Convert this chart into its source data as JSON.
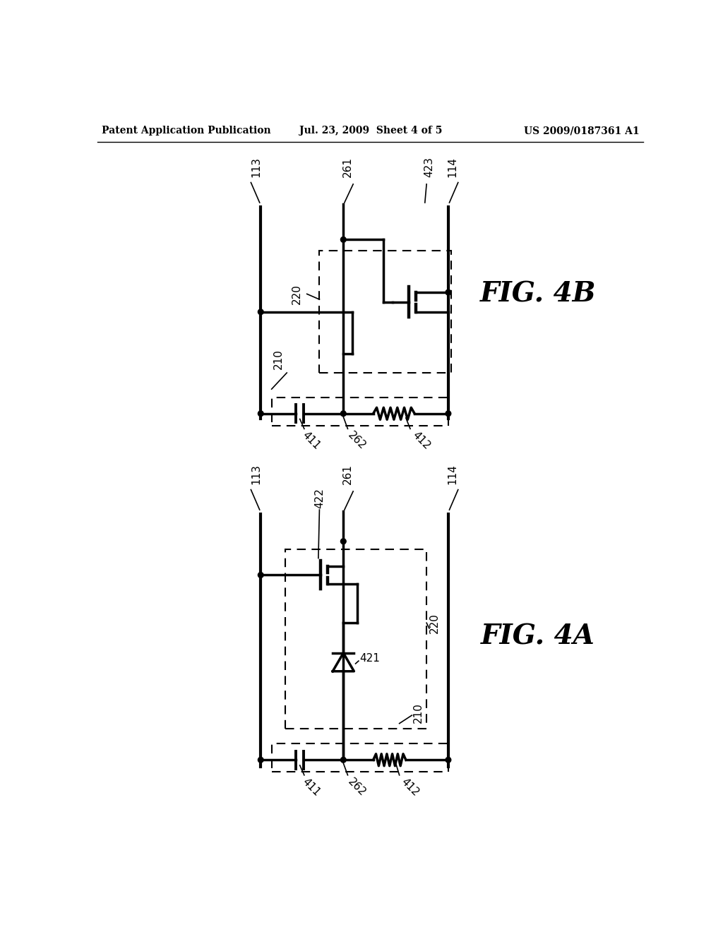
{
  "bg_color": "#ffffff",
  "lc": "#000000",
  "header_left": "Patent Application Publication",
  "header_mid": "Jul. 23, 2009  Sheet 4 of 5",
  "header_right": "US 2009/0187361 A1",
  "fig4b_label": "FIG. 4B",
  "fig4a_label": "FIG. 4A"
}
